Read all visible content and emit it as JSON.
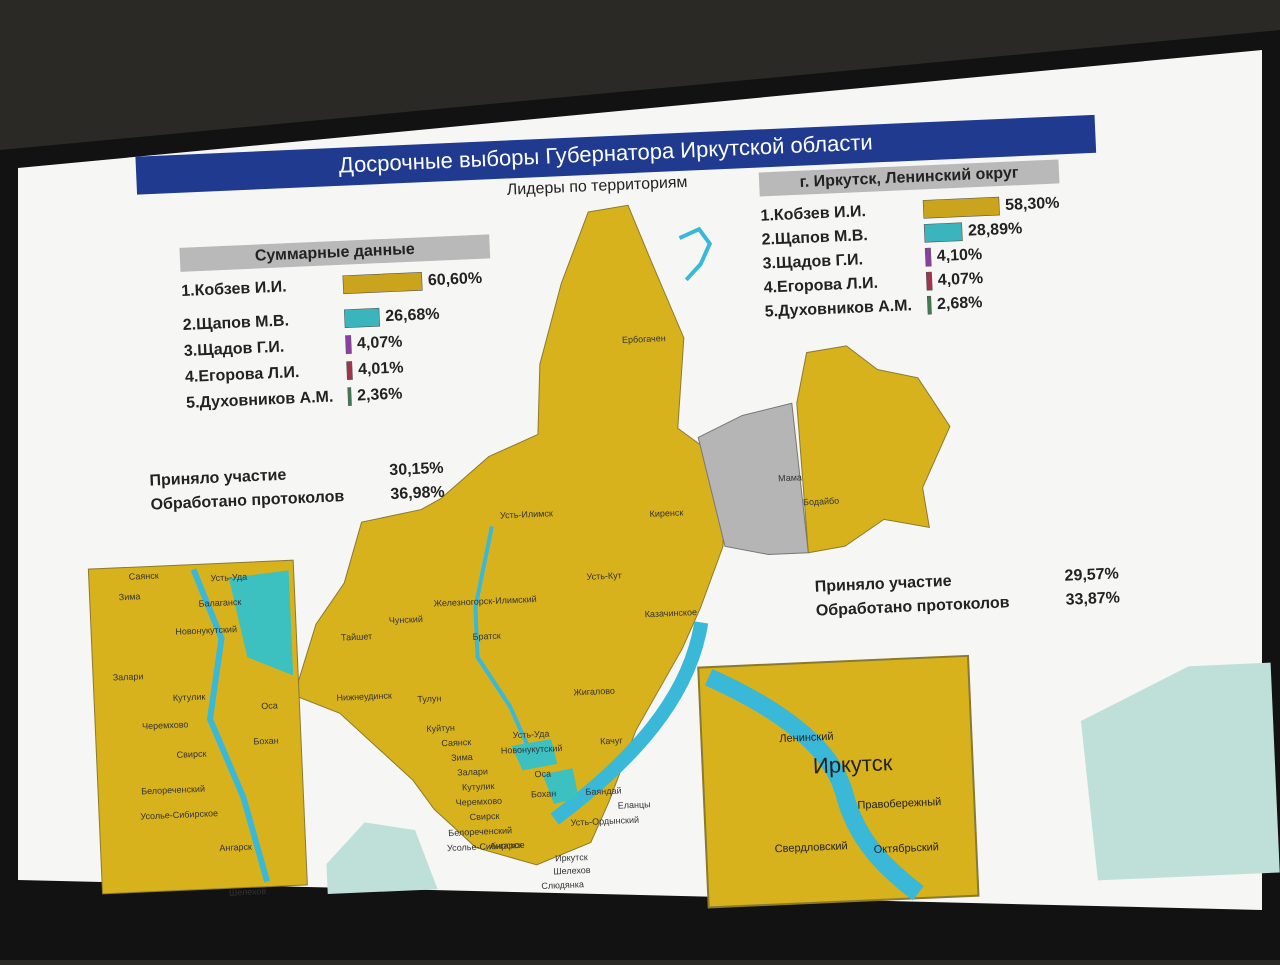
{
  "header": {
    "title": "Досрочные выборы Губернатора Иркутской области",
    "subtitle": "Лидеры по территориям"
  },
  "summary": {
    "title": "Суммарные данные",
    "candidates": [
      {
        "name": "1.Кобзев И.И.",
        "value": 60.6,
        "label": "60,60%",
        "color": "#c9a41c"
      },
      {
        "name": "2.Щапов М.В.",
        "value": 26.68,
        "label": "26,68%",
        "color": "#3bb5bd"
      },
      {
        "name": "3.Щадов Г.И.",
        "value": 4.07,
        "label": "4,07%",
        "color": "#8b3fa3"
      },
      {
        "name": "4.Егорова Л.И.",
        "value": 4.01,
        "label": "4,01%",
        "color": "#a3334a"
      },
      {
        "name": "5.Духовников А.М.",
        "value": 2.36,
        "label": "2,36%",
        "color": "#3f7d4f"
      }
    ],
    "turnout_label": "Приняло участие",
    "turnout": "30,15%",
    "protocols_label": "Обработано протоколов",
    "protocols": "36,98%"
  },
  "district": {
    "title": "г. Иркутск, Ленинский округ",
    "candidates": [
      {
        "name": "1.Кобзев И.И.",
        "value": 58.3,
        "label": "58,30%",
        "color": "#c9a41c"
      },
      {
        "name": "2.Щапов М.В.",
        "value": 28.89,
        "label": "28,89%",
        "color": "#3bb5bd"
      },
      {
        "name": "3.Щадов Г.И.",
        "value": 4.1,
        "label": "4,10%",
        "color": "#8b3fa3"
      },
      {
        "name": "4.Егорова Л.И.",
        "value": 4.07,
        "label": "4,07%",
        "color": "#a3334a"
      },
      {
        "name": "5.Духовников А.М.",
        "value": 2.68,
        "label": "2,68%",
        "color": "#3f7d4f"
      }
    ],
    "turnout_label": "Приняло участие",
    "turnout": "29,57%",
    "protocols_label": "Обработано протоколов",
    "protocols": "33,87%"
  },
  "map": {
    "places": [
      "Ербогачен",
      "Мама",
      "Бодайбо",
      "Усть-Илимск",
      "Киренск",
      "Усть-Кут",
      "Железногорск-Илимский",
      "Чунский",
      "Тайшет",
      "Братск",
      "Казачинское",
      "Нижнеудинск",
      "Тулун",
      "Жигалово",
      "Куйтун",
      "Саянск",
      "Зима",
      "Усть-Уда",
      "Новонукутский",
      "Качуг",
      "Залари",
      "Кутулик",
      "Черемхово",
      "Оса",
      "Свирск",
      "Бохан",
      "Баяндай",
      "Белореченский",
      "Усолье-Сибирское",
      "Еланцы",
      "Усть-Ордынский",
      "Ангарск",
      "Иркутск",
      "Шелехов",
      "Слюдянка"
    ],
    "left_inset": [
      "Саянск",
      "Усть-Уда",
      "Зима",
      "Балаганск",
      "Новонукутский",
      "Залари",
      "Кутулик",
      "Оса",
      "Черемхово",
      "Бохан",
      "Свирск",
      "Белореченский",
      "Усолье-Сибирское",
      "Ангарск",
      "Шелехов"
    ],
    "city_inset": {
      "title": "Иркутск",
      "districts": [
        "Ленинский",
        "Правобережный",
        "Свердловский",
        "Октябрьский"
      ]
    }
  }
}
